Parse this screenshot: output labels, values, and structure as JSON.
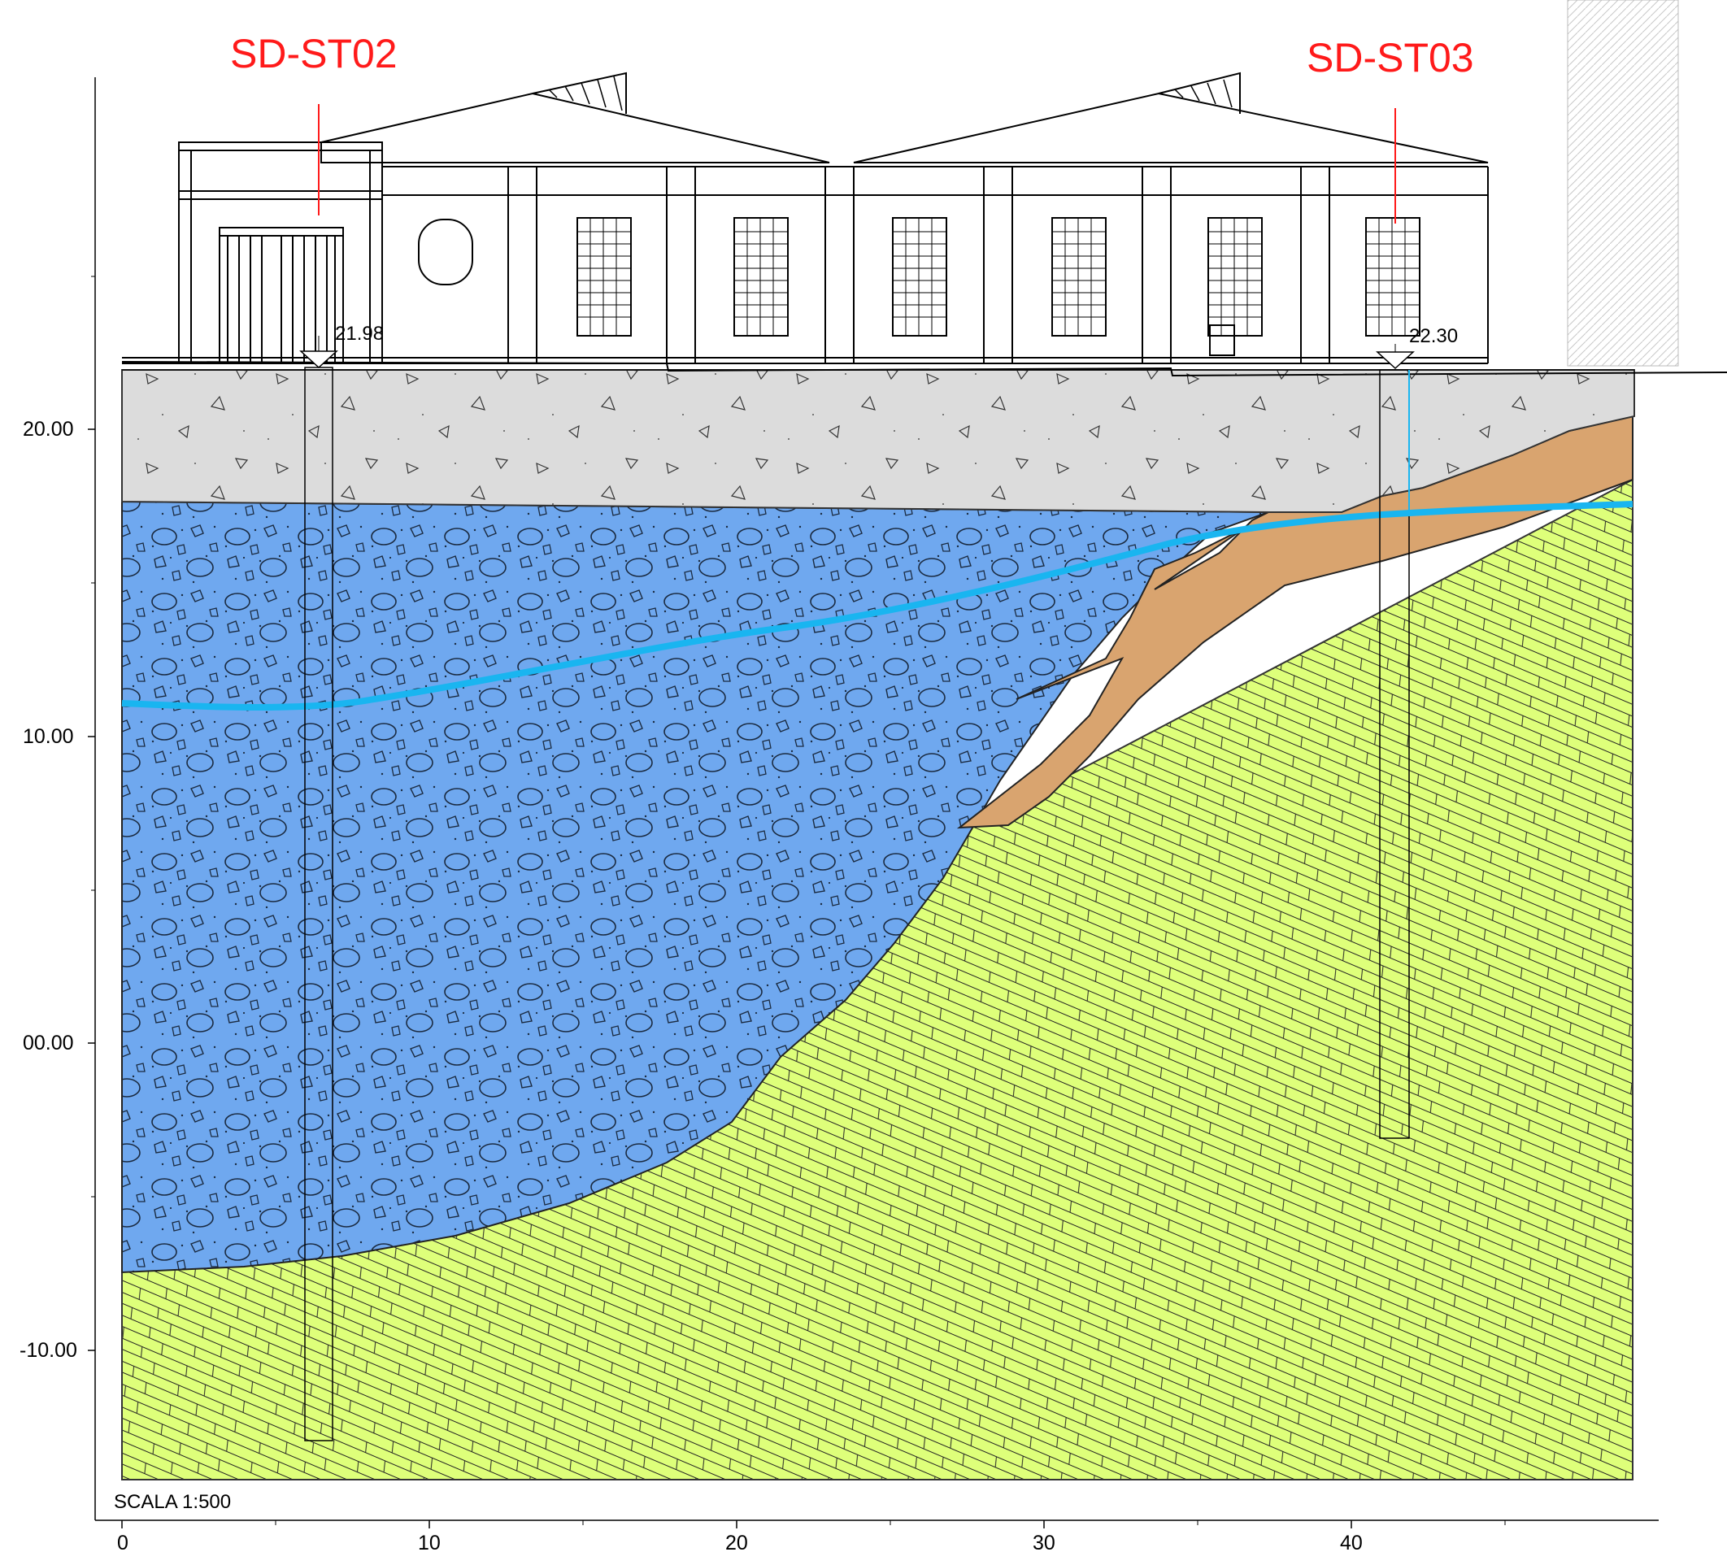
{
  "boreholes": [
    {
      "id": "SD-ST02",
      "elevation_label": "21.98"
    },
    {
      "id": "SD-ST03",
      "elevation_label": "22.30"
    }
  ],
  "scale_label": "SCALA 1:500",
  "y_axis": {
    "ticks": [
      "20.00",
      "10.00",
      "00.00",
      "-10.00"
    ]
  },
  "x_axis": {
    "ticks": [
      "0",
      "10",
      "20",
      "30",
      "40"
    ]
  },
  "colors": {
    "fill_layer": "#dcdcdc",
    "gravel_layer": "#6fa8ef",
    "clay_lens": "#d9a46f",
    "bedrock": "#deff7a",
    "water_table": "#19b5f0",
    "borehole_label": "#ff1a1a"
  },
  "icons": {
    "elevation_marker": "triangle-down-icon"
  }
}
